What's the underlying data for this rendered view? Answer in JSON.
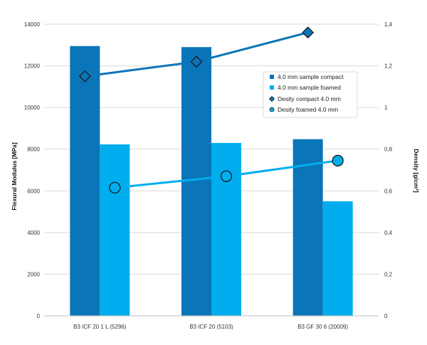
{
  "chart_data": {
    "type": "bar",
    "categories": [
      "B3 ICF 20 1 L (5296)",
      "B3 ICF 20 (5103)",
      "B3 GF 30 6 (20009)"
    ],
    "series": [
      {
        "name": "4.0 mm sample compact",
        "kind": "bar",
        "axis": "left",
        "color": "#0a75b8",
        "values": [
          12950,
          12900,
          8480
        ]
      },
      {
        "name": "4.0 mm sample foamed",
        "kind": "bar",
        "axis": "left",
        "color": "#00aeef",
        "values": [
          8230,
          8300,
          5500
        ]
      },
      {
        "name": "Desity compact 4.0 mm",
        "kind": "line",
        "marker": "diamond",
        "axis": "right",
        "color": "#0a75b8",
        "values": [
          1.15,
          1.22,
          1.36
        ]
      },
      {
        "name": "Desity foamed 4.0 mm",
        "kind": "line",
        "marker": "circle",
        "axis": "right",
        "color": "#00aeef",
        "values": [
          0.615,
          0.67,
          0.745
        ]
      }
    ],
    "ylabel": "Flexural Modulus [MPa]",
    "y2label": "Density [g/cm³]",
    "ylim": [
      0,
      14000
    ],
    "y2lim": [
      0,
      1.4
    ],
    "yticks": [
      0,
      2000,
      4000,
      6000,
      8000,
      10000,
      12000,
      14000
    ],
    "ytick_labels": [
      "0",
      "2000",
      "4000",
      "6000",
      "8000",
      "10000",
      "12000",
      "14000"
    ],
    "y2ticks": [
      0,
      0.2,
      0.4,
      0.6,
      0.8,
      1.0,
      1.2,
      1.4
    ],
    "y2tick_labels": [
      "0",
      "0,2",
      "0,4",
      "0,6",
      "0,8",
      "1",
      "1,2",
      "1,4"
    ],
    "grid": true,
    "legend_position": "upper-right"
  }
}
